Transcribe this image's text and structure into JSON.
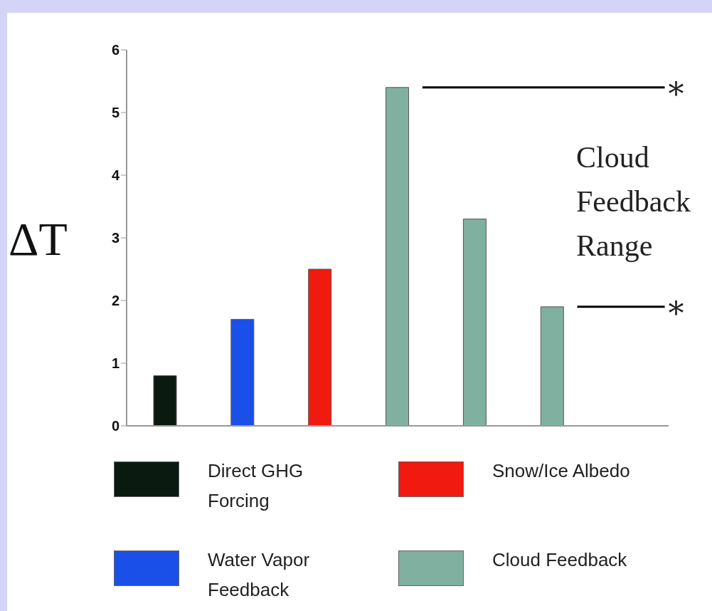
{
  "chart_data": {
    "type": "bar",
    "ylabel": "ΔT",
    "categories": [
      null,
      null,
      null,
      null,
      null,
      null,
      null
    ],
    "series": [
      {
        "name": "Direct GHG Forcing",
        "color": "#0a1a10",
        "values": [
          0.8,
          null,
          null,
          null,
          null,
          null,
          null
        ]
      },
      {
        "name": "Water Vapor Feedback",
        "color": "#1a50e8",
        "values": [
          null,
          1.7,
          null,
          null,
          null,
          null,
          null
        ]
      },
      {
        "name": "Snow/Ice Albedo",
        "color": "#f01a10",
        "values": [
          null,
          null,
          2.5,
          null,
          null,
          null,
          null
        ]
      },
      {
        "name": "Cloud Feedback",
        "color": "#80b0a0",
        "values": [
          null,
          null,
          null,
          5.4,
          3.3,
          1.9,
          null
        ]
      }
    ],
    "stacked": true,
    "ylim": [
      0,
      6
    ],
    "yticks": [
      0,
      1,
      2,
      3,
      4,
      5,
      6
    ],
    "grid": false,
    "legend": "bottom",
    "ref_lines": [
      {
        "axis": "y",
        "value": 5.4,
        "label": "*"
      },
      {
        "axis": "y",
        "value": 1.9,
        "label": "*"
      }
    ],
    "annotations": [
      "Cloud Feedback Range"
    ]
  }
}
